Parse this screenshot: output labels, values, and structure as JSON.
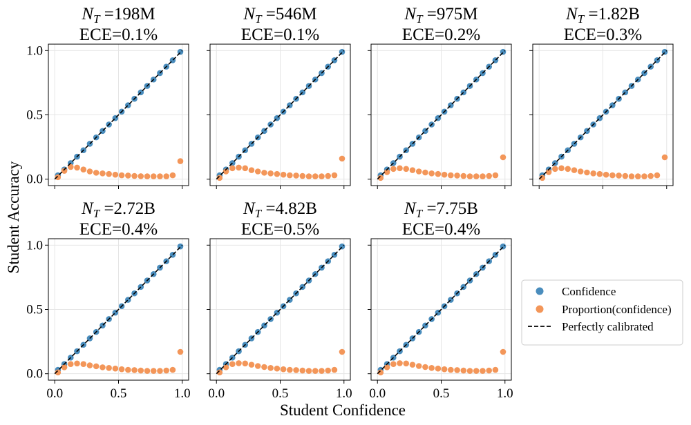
{
  "figure": {
    "xlabel": "Student Confidence",
    "ylabel": "Student Accuracy",
    "legend": {
      "position": "right",
      "entries": [
        {
          "label": "Confidence",
          "marker": "circle",
          "color": "#4a8dbd"
        },
        {
          "label": "Proportion(confidence)",
          "marker": "circle",
          "color": "#f39659"
        },
        {
          "label": "Perfectly calibrated",
          "marker": "dashed-line",
          "color": "#000000"
        }
      ]
    }
  },
  "chart_data": [
    {
      "type": "scatter",
      "title_var": "N",
      "title_sub": "T",
      "title_rest": " =198M",
      "subtitle": "ECE=0.1%",
      "xlim": [
        -0.05,
        1.05
      ],
      "ylim": [
        -0.05,
        1.05
      ],
      "xticks": [
        0.0,
        0.5,
        1.0
      ],
      "xtick_labels": [],
      "yticks": [
        0.0,
        0.5,
        1.0
      ],
      "ytick_labels": [
        "0.0",
        "0.5",
        "1.0"
      ],
      "grid": true,
      "series": [
        {
          "name": "Confidence",
          "color": "#4a8dbd",
          "x": [
            0.025,
            0.075,
            0.125,
            0.175,
            0.225,
            0.275,
            0.325,
            0.375,
            0.425,
            0.475,
            0.525,
            0.575,
            0.625,
            0.675,
            0.725,
            0.775,
            0.825,
            0.875,
            0.925,
            0.985
          ],
          "y": [
            0.03,
            0.075,
            0.125,
            0.175,
            0.225,
            0.275,
            0.325,
            0.375,
            0.425,
            0.475,
            0.525,
            0.575,
            0.625,
            0.675,
            0.725,
            0.775,
            0.825,
            0.875,
            0.925,
            0.99
          ]
        },
        {
          "name": "Proportion(confidence)",
          "color": "#f39659",
          "x": [
            0.025,
            0.075,
            0.125,
            0.175,
            0.225,
            0.275,
            0.325,
            0.375,
            0.425,
            0.475,
            0.525,
            0.575,
            0.625,
            0.675,
            0.725,
            0.775,
            0.825,
            0.875,
            0.925,
            0.985
          ],
          "y": [
            0.015,
            0.065,
            0.095,
            0.09,
            0.075,
            0.06,
            0.05,
            0.045,
            0.04,
            0.035,
            0.03,
            0.028,
            0.025,
            0.023,
            0.022,
            0.022,
            0.022,
            0.022,
            0.03,
            0.14
          ]
        }
      ]
    },
    {
      "type": "scatter",
      "title_var": "N",
      "title_sub": "T",
      "title_rest": " =546M",
      "subtitle": "ECE=0.1%",
      "xlim": [
        -0.05,
        1.05
      ],
      "ylim": [
        -0.05,
        1.05
      ],
      "xticks": [
        0.0,
        0.5,
        1.0
      ],
      "xtick_labels": [],
      "yticks": [
        0.0,
        0.5,
        1.0
      ],
      "ytick_labels": [],
      "grid": true,
      "series": [
        {
          "name": "Confidence",
          "color": "#4a8dbd",
          "x": [
            0.025,
            0.075,
            0.125,
            0.175,
            0.225,
            0.275,
            0.325,
            0.375,
            0.425,
            0.475,
            0.525,
            0.575,
            0.625,
            0.675,
            0.725,
            0.775,
            0.825,
            0.875,
            0.925,
            0.985
          ],
          "y": [
            0.03,
            0.075,
            0.125,
            0.175,
            0.225,
            0.275,
            0.325,
            0.375,
            0.425,
            0.475,
            0.525,
            0.575,
            0.625,
            0.675,
            0.725,
            0.775,
            0.825,
            0.875,
            0.925,
            0.99
          ]
        },
        {
          "name": "Proportion(confidence)",
          "color": "#f39659",
          "x": [
            0.025,
            0.075,
            0.125,
            0.175,
            0.225,
            0.275,
            0.325,
            0.375,
            0.425,
            0.475,
            0.525,
            0.575,
            0.625,
            0.675,
            0.725,
            0.775,
            0.825,
            0.875,
            0.925,
            0.985
          ],
          "y": [
            0.01,
            0.06,
            0.085,
            0.09,
            0.085,
            0.07,
            0.06,
            0.05,
            0.045,
            0.04,
            0.035,
            0.03,
            0.028,
            0.025,
            0.022,
            0.022,
            0.022,
            0.025,
            0.03,
            0.16
          ]
        }
      ]
    },
    {
      "type": "scatter",
      "title_var": "N",
      "title_sub": "T",
      "title_rest": " =975M",
      "subtitle": "ECE=0.2%",
      "xlim": [
        -0.05,
        1.05
      ],
      "ylim": [
        -0.05,
        1.05
      ],
      "xticks": [
        0.0,
        0.5,
        1.0
      ],
      "xtick_labels": [],
      "yticks": [
        0.0,
        0.5,
        1.0
      ],
      "ytick_labels": [],
      "grid": true,
      "series": [
        {
          "name": "Confidence",
          "color": "#4a8dbd",
          "x": [
            0.025,
            0.075,
            0.125,
            0.175,
            0.225,
            0.275,
            0.325,
            0.375,
            0.425,
            0.475,
            0.525,
            0.575,
            0.625,
            0.675,
            0.725,
            0.775,
            0.825,
            0.875,
            0.925,
            0.985
          ],
          "y": [
            0.03,
            0.075,
            0.125,
            0.175,
            0.225,
            0.275,
            0.325,
            0.375,
            0.425,
            0.475,
            0.525,
            0.575,
            0.625,
            0.675,
            0.725,
            0.775,
            0.825,
            0.875,
            0.925,
            0.99
          ]
        },
        {
          "name": "Proportion(confidence)",
          "color": "#f39659",
          "x": [
            0.025,
            0.075,
            0.125,
            0.175,
            0.225,
            0.275,
            0.325,
            0.375,
            0.425,
            0.475,
            0.525,
            0.575,
            0.625,
            0.675,
            0.725,
            0.775,
            0.825,
            0.875,
            0.925,
            0.985
          ],
          "y": [
            0.01,
            0.055,
            0.08,
            0.085,
            0.08,
            0.07,
            0.06,
            0.052,
            0.045,
            0.04,
            0.035,
            0.03,
            0.028,
            0.025,
            0.022,
            0.022,
            0.022,
            0.025,
            0.03,
            0.17
          ]
        }
      ]
    },
    {
      "type": "scatter",
      "title_var": "N",
      "title_sub": "T",
      "title_rest": " =1.82B",
      "subtitle": "ECE=0.3%",
      "xlim": [
        -0.05,
        1.05
      ],
      "ylim": [
        -0.05,
        1.05
      ],
      "xticks": [
        0.0,
        0.5,
        1.0
      ],
      "xtick_labels": [],
      "yticks": [
        0.0,
        0.5,
        1.0
      ],
      "ytick_labels": [],
      "grid": true,
      "series": [
        {
          "name": "Confidence",
          "color": "#4a8dbd",
          "x": [
            0.025,
            0.075,
            0.125,
            0.175,
            0.225,
            0.275,
            0.325,
            0.375,
            0.425,
            0.475,
            0.525,
            0.575,
            0.625,
            0.675,
            0.725,
            0.775,
            0.825,
            0.875,
            0.925,
            0.985
          ],
          "y": [
            0.03,
            0.075,
            0.125,
            0.175,
            0.225,
            0.275,
            0.325,
            0.375,
            0.425,
            0.475,
            0.525,
            0.575,
            0.625,
            0.675,
            0.725,
            0.775,
            0.825,
            0.875,
            0.925,
            0.99
          ]
        },
        {
          "name": "Proportion(confidence)",
          "color": "#f39659",
          "x": [
            0.025,
            0.075,
            0.125,
            0.175,
            0.225,
            0.275,
            0.325,
            0.375,
            0.425,
            0.475,
            0.525,
            0.575,
            0.625,
            0.675,
            0.725,
            0.775,
            0.825,
            0.875,
            0.925,
            0.985
          ],
          "y": [
            0.01,
            0.055,
            0.08,
            0.085,
            0.08,
            0.07,
            0.06,
            0.052,
            0.045,
            0.04,
            0.035,
            0.03,
            0.028,
            0.025,
            0.022,
            0.022,
            0.022,
            0.025,
            0.03,
            0.17
          ]
        }
      ]
    },
    {
      "type": "scatter",
      "title_var": "N",
      "title_sub": "T",
      "title_rest": " =2.72B",
      "subtitle": "ECE=0.4%",
      "xlim": [
        -0.05,
        1.05
      ],
      "ylim": [
        -0.05,
        1.05
      ],
      "xticks": [
        0.0,
        0.5,
        1.0
      ],
      "xtick_labels": [
        "0.0",
        "0.5",
        "1.0"
      ],
      "yticks": [
        0.0,
        0.5,
        1.0
      ],
      "ytick_labels": [
        "0.0",
        "0.5",
        "1.0"
      ],
      "grid": true,
      "series": [
        {
          "name": "Confidence",
          "color": "#4a8dbd",
          "x": [
            0.025,
            0.075,
            0.125,
            0.175,
            0.225,
            0.275,
            0.325,
            0.375,
            0.425,
            0.475,
            0.525,
            0.575,
            0.625,
            0.675,
            0.725,
            0.775,
            0.825,
            0.875,
            0.925,
            0.985
          ],
          "y": [
            0.03,
            0.075,
            0.125,
            0.175,
            0.225,
            0.275,
            0.325,
            0.375,
            0.425,
            0.475,
            0.525,
            0.575,
            0.625,
            0.675,
            0.725,
            0.775,
            0.825,
            0.875,
            0.925,
            0.99
          ]
        },
        {
          "name": "Proportion(confidence)",
          "color": "#f39659",
          "x": [
            0.025,
            0.075,
            0.125,
            0.175,
            0.225,
            0.275,
            0.325,
            0.375,
            0.425,
            0.475,
            0.525,
            0.575,
            0.625,
            0.675,
            0.725,
            0.775,
            0.825,
            0.875,
            0.925,
            0.985
          ],
          "y": [
            0.01,
            0.05,
            0.075,
            0.08,
            0.075,
            0.065,
            0.058,
            0.05,
            0.045,
            0.04,
            0.035,
            0.03,
            0.028,
            0.025,
            0.022,
            0.022,
            0.022,
            0.025,
            0.03,
            0.17
          ]
        }
      ]
    },
    {
      "type": "scatter",
      "title_var": "N",
      "title_sub": "T",
      "title_rest": " =4.82B",
      "subtitle": "ECE=0.5%",
      "xlim": [
        -0.05,
        1.05
      ],
      "ylim": [
        -0.05,
        1.05
      ],
      "xticks": [
        0.0,
        0.5,
        1.0
      ],
      "xtick_labels": [
        "0.0",
        "0.5",
        "1.0"
      ],
      "yticks": [
        0.0,
        0.5,
        1.0
      ],
      "ytick_labels": [],
      "grid": true,
      "series": [
        {
          "name": "Confidence",
          "color": "#4a8dbd",
          "x": [
            0.025,
            0.075,
            0.125,
            0.175,
            0.225,
            0.275,
            0.325,
            0.375,
            0.425,
            0.475,
            0.525,
            0.575,
            0.625,
            0.675,
            0.725,
            0.775,
            0.825,
            0.875,
            0.925,
            0.985
          ],
          "y": [
            0.03,
            0.075,
            0.125,
            0.175,
            0.225,
            0.275,
            0.325,
            0.375,
            0.425,
            0.475,
            0.525,
            0.575,
            0.625,
            0.675,
            0.725,
            0.775,
            0.825,
            0.875,
            0.925,
            0.99
          ]
        },
        {
          "name": "Proportion(confidence)",
          "color": "#f39659",
          "x": [
            0.025,
            0.075,
            0.125,
            0.175,
            0.225,
            0.275,
            0.325,
            0.375,
            0.425,
            0.475,
            0.525,
            0.575,
            0.625,
            0.675,
            0.725,
            0.775,
            0.825,
            0.875,
            0.925,
            0.985
          ],
          "y": [
            0.01,
            0.05,
            0.075,
            0.082,
            0.08,
            0.07,
            0.06,
            0.052,
            0.045,
            0.04,
            0.035,
            0.03,
            0.028,
            0.025,
            0.022,
            0.022,
            0.022,
            0.025,
            0.03,
            0.17
          ]
        }
      ]
    },
    {
      "type": "scatter",
      "title_var": "N",
      "title_sub": "T",
      "title_rest": " =7.75B",
      "subtitle": "ECE=0.4%",
      "xlim": [
        -0.05,
        1.05
      ],
      "ylim": [
        -0.05,
        1.05
      ],
      "xticks": [
        0.0,
        0.5,
        1.0
      ],
      "xtick_labels": [
        "0.0",
        "0.5",
        "1.0"
      ],
      "yticks": [
        0.0,
        0.5,
        1.0
      ],
      "ytick_labels": [],
      "grid": true,
      "series": [
        {
          "name": "Confidence",
          "color": "#4a8dbd",
          "x": [
            0.025,
            0.075,
            0.125,
            0.175,
            0.225,
            0.275,
            0.325,
            0.375,
            0.425,
            0.475,
            0.525,
            0.575,
            0.625,
            0.675,
            0.725,
            0.775,
            0.825,
            0.875,
            0.925,
            0.985
          ],
          "y": [
            0.03,
            0.075,
            0.125,
            0.175,
            0.225,
            0.275,
            0.325,
            0.375,
            0.425,
            0.475,
            0.525,
            0.575,
            0.625,
            0.675,
            0.725,
            0.775,
            0.825,
            0.875,
            0.925,
            0.99
          ]
        },
        {
          "name": "Proportion(confidence)",
          "color": "#f39659",
          "x": [
            0.025,
            0.075,
            0.125,
            0.175,
            0.225,
            0.275,
            0.325,
            0.375,
            0.425,
            0.475,
            0.525,
            0.575,
            0.625,
            0.675,
            0.725,
            0.775,
            0.825,
            0.875,
            0.925,
            0.985
          ],
          "y": [
            0.01,
            0.05,
            0.075,
            0.082,
            0.08,
            0.07,
            0.06,
            0.052,
            0.045,
            0.04,
            0.035,
            0.03,
            0.028,
            0.025,
            0.022,
            0.022,
            0.022,
            0.025,
            0.03,
            0.17
          ]
        }
      ]
    }
  ]
}
